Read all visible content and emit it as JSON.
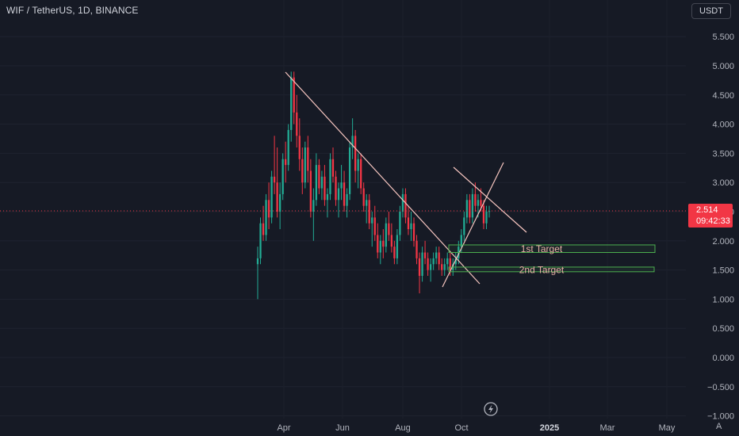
{
  "header": {
    "symbol_title": "WIF / TetherUS, 1D, BINANCE",
    "currency": "USDT"
  },
  "price_tag": {
    "price": "2.514",
    "countdown": "09:42:33"
  },
  "footer": {
    "auto_scale": "A",
    "lightning_icon": "lightning-icon"
  },
  "colors": {
    "background": "#161a25",
    "up": "#22ab94",
    "down": "#f23645",
    "trendline": "#f7c6c0",
    "target_box": "#4caf50",
    "price_line": "#f23645"
  },
  "chart_data": {
    "type": "candlestick",
    "title": "WIF / TetherUS, 1D, BINANCE",
    "ylim": [
      -1.0,
      5.8
    ],
    "y_ticks": [
      "5.500",
      "5.000",
      "4.500",
      "4.000",
      "3.500",
      "3.000",
      "2.500",
      "2.000",
      "1.500",
      "1.000",
      "0.500",
      "0.000",
      "−0.500",
      "−1.000"
    ],
    "x_ticks": [
      "Apr",
      "Jun",
      "Aug",
      "Oct",
      "2025",
      "Mar",
      "May"
    ],
    "x_ticks_bold": [
      "2025"
    ],
    "grid": true,
    "last_price": 2.514,
    "series": [
      {
        "values": [
          [
            1.6,
            1.9,
            1.0,
            1.7
          ],
          [
            1.7,
            2.4,
            1.6,
            2.3
          ],
          [
            2.3,
            2.6,
            2.0,
            2.1
          ],
          [
            2.1,
            2.8,
            2.0,
            2.7
          ],
          [
            2.7,
            3.0,
            2.2,
            2.4
          ],
          [
            2.4,
            3.2,
            2.3,
            3.1
          ],
          [
            3.1,
            3.8,
            2.8,
            3.0
          ],
          [
            3.0,
            3.6,
            2.4,
            2.5
          ],
          [
            2.5,
            3.0,
            2.2,
            2.8
          ],
          [
            2.8,
            3.5,
            2.7,
            3.4
          ],
          [
            3.4,
            3.7,
            3.0,
            3.3
          ],
          [
            3.3,
            4.0,
            3.2,
            3.9
          ],
          [
            3.9,
            4.9,
            3.7,
            4.8
          ],
          [
            4.8,
            4.9,
            4.0,
            4.2
          ],
          [
            4.2,
            4.5,
            3.6,
            3.8
          ],
          [
            3.8,
            4.1,
            3.2,
            3.4
          ],
          [
            3.4,
            3.6,
            2.8,
            3.0
          ],
          [
            3.0,
            3.7,
            2.9,
            3.6
          ],
          [
            3.6,
            3.8,
            3.0,
            3.2
          ],
          [
            3.2,
            3.4,
            2.4,
            2.5
          ],
          [
            2.5,
            2.9,
            2.0,
            2.7
          ],
          [
            2.7,
            3.5,
            2.6,
            3.3
          ],
          [
            3.3,
            3.4,
            2.8,
            2.9
          ],
          [
            2.9,
            3.2,
            2.7,
            3.1
          ],
          [
            3.1,
            3.3,
            2.6,
            2.7
          ],
          [
            2.7,
            2.9,
            2.4,
            2.8
          ],
          [
            2.8,
            3.5,
            2.7,
            3.4
          ],
          [
            3.4,
            3.6,
            3.0,
            3.1
          ],
          [
            3.1,
            3.2,
            2.6,
            2.7
          ],
          [
            2.7,
            3.0,
            2.4,
            2.9
          ],
          [
            2.9,
            3.3,
            2.7,
            3.0
          ],
          [
            3.0,
            3.2,
            2.5,
            2.6
          ],
          [
            2.6,
            2.9,
            2.4,
            2.8
          ],
          [
            2.8,
            3.7,
            2.7,
            3.6
          ],
          [
            3.6,
            4.1,
            3.4,
            3.8
          ],
          [
            3.8,
            3.9,
            3.0,
            3.2
          ],
          [
            3.2,
            3.5,
            2.9,
            3.4
          ],
          [
            3.4,
            3.5,
            2.8,
            2.9
          ],
          [
            2.9,
            3.0,
            2.5,
            2.6
          ],
          [
            2.6,
            2.8,
            2.3,
            2.7
          ],
          [
            2.7,
            2.8,
            2.2,
            2.3
          ],
          [
            2.3,
            2.5,
            1.9,
            2.4
          ],
          [
            2.4,
            2.6,
            2.0,
            2.1
          ],
          [
            2.1,
            2.3,
            1.7,
            1.8
          ],
          [
            1.8,
            2.1,
            1.6,
            2.0
          ],
          [
            2.0,
            2.2,
            1.7,
            1.9
          ],
          [
            1.9,
            2.4,
            1.8,
            2.3
          ],
          [
            2.3,
            2.5,
            2.0,
            2.1
          ],
          [
            2.1,
            2.3,
            1.8,
            1.9
          ],
          [
            1.9,
            2.0,
            1.6,
            1.7
          ],
          [
            1.7,
            2.2,
            1.6,
            2.1
          ],
          [
            2.1,
            2.6,
            2.0,
            2.5
          ],
          [
            2.5,
            2.9,
            2.4,
            2.8
          ],
          [
            2.8,
            2.9,
            2.3,
            2.4
          ],
          [
            2.4,
            2.6,
            2.1,
            2.2
          ],
          [
            2.2,
            2.5,
            2.0,
            2.3
          ],
          [
            2.3,
            2.4,
            1.9,
            2.0
          ],
          [
            2.0,
            2.1,
            1.6,
            1.7
          ],
          [
            1.7,
            1.8,
            1.1,
            1.4
          ],
          [
            1.4,
            1.9,
            1.3,
            1.8
          ],
          [
            1.8,
            2.0,
            1.6,
            1.7
          ],
          [
            1.7,
            1.8,
            1.4,
            1.5
          ],
          [
            1.5,
            1.7,
            1.3,
            1.6
          ],
          [
            1.6,
            1.8,
            1.5,
            1.7
          ],
          [
            1.7,
            1.9,
            1.6,
            1.8
          ],
          [
            1.8,
            1.9,
            1.5,
            1.6
          ],
          [
            1.6,
            1.7,
            1.4,
            1.5
          ],
          [
            1.5,
            1.7,
            1.4,
            1.6
          ],
          [
            1.6,
            1.8,
            1.5,
            1.7
          ],
          [
            1.7,
            1.8,
            1.4,
            1.5
          ],
          [
            1.5,
            1.7,
            1.4,
            1.6
          ],
          [
            1.6,
            1.8,
            1.5,
            1.7
          ],
          [
            1.7,
            2.0,
            1.6,
            1.9
          ],
          [
            1.9,
            2.2,
            1.8,
            2.1
          ],
          [
            2.1,
            2.5,
            2.0,
            2.4
          ],
          [
            2.4,
            2.8,
            2.3,
            2.7
          ],
          [
            2.7,
            2.8,
            2.3,
            2.4
          ],
          [
            2.4,
            2.9,
            2.3,
            2.8
          ],
          [
            2.8,
            3.0,
            2.5,
            2.6
          ],
          [
            2.6,
            2.8,
            2.4,
            2.7
          ],
          [
            2.7,
            2.9,
            2.5,
            2.6
          ],
          [
            2.6,
            2.7,
            2.2,
            2.3
          ],
          [
            2.3,
            2.6,
            2.2,
            2.5
          ],
          [
            2.5,
            2.6,
            2.4,
            2.51
          ]
        ]
      }
    ],
    "annotations": [
      {
        "text": "1st Target",
        "y_range": [
          1.8,
          1.93
        ]
      },
      {
        "text": "2nd Target",
        "y_range": [
          1.47,
          1.55
        ]
      }
    ]
  }
}
